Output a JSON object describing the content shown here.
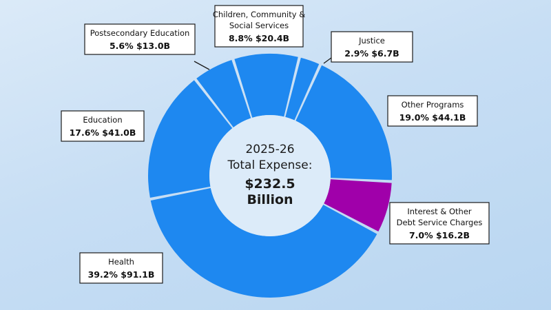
{
  "chart_data": {
    "type": "pie",
    "center": {
      "line1": "2025-26",
      "line2": "Total Expense:",
      "line3": "$232.5",
      "line4": "Billion"
    },
    "slices": [
      {
        "name_lines": [
          "Justice"
        ],
        "percent": 2.9,
        "percent_label": "2.9%",
        "amount_label": "$6.7B",
        "color": "#1e88f0"
      },
      {
        "name_lines": [
          "Other Programs"
        ],
        "percent": 19.0,
        "percent_label": "19.0%",
        "amount_label": "$44.1B",
        "color": "#1e88f0"
      },
      {
        "name_lines": [
          "Interest & Other",
          "Debt Service Charges"
        ],
        "percent": 7.0,
        "percent_label": "7.0%",
        "amount_label": "$16.2B",
        "color": "#a000aa"
      },
      {
        "name_lines": [
          "Health"
        ],
        "percent": 39.2,
        "percent_label": "39.2%",
        "amount_label": "$91.1B",
        "color": "#1e88f0"
      },
      {
        "name_lines": [
          "Education"
        ],
        "percent": 17.6,
        "percent_label": "17.6%",
        "amount_label": "$41.0B",
        "color": "#1e88f0"
      },
      {
        "name_lines": [
          "Postsecondary Education"
        ],
        "percent": 5.6,
        "percent_label": "5.6%",
        "amount_label": "$13.0B",
        "color": "#1e88f0"
      },
      {
        "name_lines": [
          "Children, Community &",
          "Social Services"
        ],
        "percent": 8.8,
        "percent_label": "8.8%",
        "amount_label": "$20.4B",
        "color": "#1e88f0"
      }
    ]
  }
}
